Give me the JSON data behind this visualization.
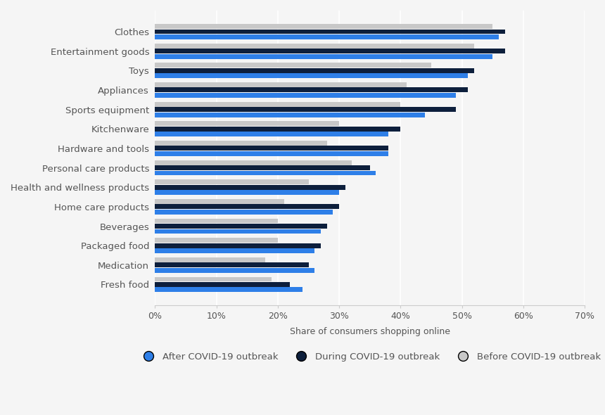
{
  "categories": [
    "Fresh food",
    "Medication",
    "Packaged food",
    "Beverages",
    "Home care products",
    "Health and wellness products",
    "Personal care products",
    "Hardware and tools",
    "Kitchenware",
    "Sports equipment",
    "Appliances",
    "Toys",
    "Entertainment goods",
    "Clothes"
  ],
  "after": [
    24,
    26,
    26,
    27,
    29,
    30,
    36,
    38,
    38,
    44,
    49,
    51,
    55,
    56
  ],
  "during": [
    22,
    25,
    27,
    28,
    30,
    31,
    35,
    38,
    40,
    49,
    51,
    52,
    57,
    57
  ],
  "before": [
    19,
    18,
    20,
    20,
    21,
    25,
    32,
    28,
    30,
    40,
    41,
    45,
    52,
    55
  ],
  "color_after": "#2e7fe8",
  "color_during": "#0d1f3c",
  "color_before": "#c8c8c8",
  "xlabel": "Share of consumers shopping online",
  "legend_labels": [
    "After COVID-19 outbreak",
    "During COVID-19 outbreak",
    "Before COVID-19 outbreak"
  ],
  "background_color": "#f5f5f5",
  "xlim": [
    0,
    70
  ],
  "xticks": [
    0,
    10,
    20,
    30,
    40,
    50,
    60,
    70
  ]
}
